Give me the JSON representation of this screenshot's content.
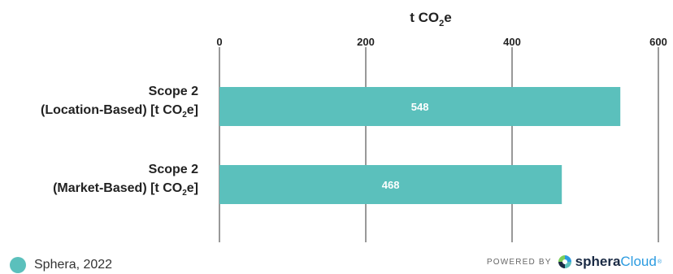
{
  "chart_data": {
    "type": "bar",
    "orientation": "horizontal",
    "axis_title": {
      "main": "t CO",
      "sub": "2",
      "end": "e"
    },
    "xlim": [
      0,
      600
    ],
    "xticks": [
      0,
      200,
      400,
      600
    ],
    "grid": true,
    "categories": [
      {
        "line1": "Scope 2",
        "line2_main": "(Location-Based) [t CO",
        "line2_sub": "2",
        "line2_end": "e]"
      },
      {
        "line1": "Scope 2",
        "line2_main": "(Market-Based) [t CO",
        "line2_sub": "2",
        "line2_end": "e]"
      }
    ],
    "values": [
      548,
      468
    ],
    "data_labels": [
      "548",
      "468"
    ],
    "bar_color": "#5bc0bc"
  },
  "legend": {
    "label": "Sphera, 2022",
    "color": "#5bc0bc"
  },
  "branding": {
    "powered_by": "POWERED BY",
    "logo_part1": "sphera",
    "logo_part2": "Cloud",
    "logo_reg": "®"
  }
}
